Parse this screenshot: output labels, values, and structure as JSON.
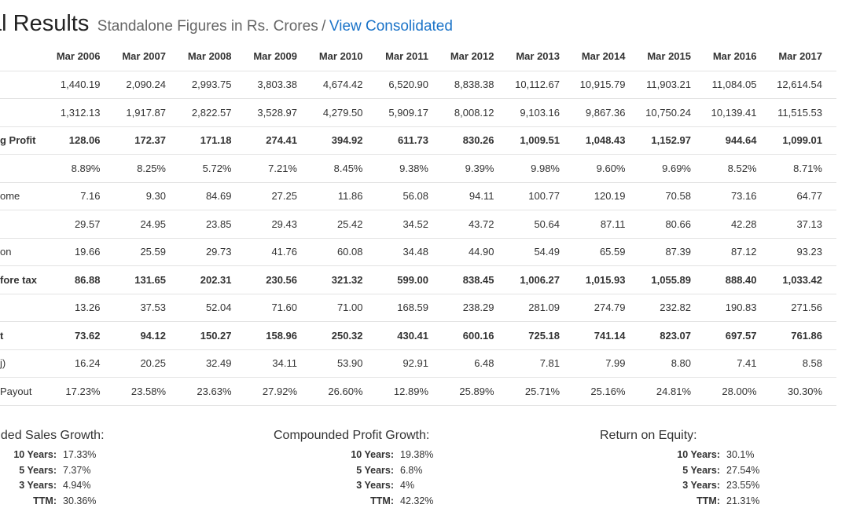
{
  "header": {
    "title": "al Results",
    "subtitle": "Standalone Figures in Rs. Crores",
    "separator": "/",
    "link": "View Consolidated"
  },
  "table": {
    "columns": [
      "Mar 2006",
      "Mar 2007",
      "Mar 2008",
      "Mar 2009",
      "Mar 2010",
      "Mar 2011",
      "Mar 2012",
      "Mar 2013",
      "Mar 2014",
      "Mar 2015",
      "Mar 2016",
      "Mar 2017"
    ],
    "rows": [
      {
        "label": "",
        "bold": false,
        "values": [
          "1,440.19",
          "2,090.24",
          "2,993.75",
          "3,803.38",
          "4,674.42",
          "6,520.90",
          "8,838.38",
          "10,112.67",
          "10,915.79",
          "11,903.21",
          "11,084.05",
          "12,614.54"
        ]
      },
      {
        "label": "",
        "bold": false,
        "values": [
          "1,312.13",
          "1,917.87",
          "2,822.57",
          "3,528.97",
          "4,279.50",
          "5,909.17",
          "8,008.12",
          "9,103.16",
          "9,867.36",
          "10,750.24",
          "10,139.41",
          "11,515.53"
        ]
      },
      {
        "label": "g Profit",
        "bold": true,
        "values": [
          "128.06",
          "172.37",
          "171.18",
          "274.41",
          "394.92",
          "611.73",
          "830.26",
          "1,009.51",
          "1,048.43",
          "1,152.97",
          "944.64",
          "1,099.01"
        ]
      },
      {
        "label": "",
        "bold": false,
        "values": [
          "8.89%",
          "8.25%",
          "5.72%",
          "7.21%",
          "8.45%",
          "9.38%",
          "9.39%",
          "9.98%",
          "9.60%",
          "9.69%",
          "8.52%",
          "8.71%"
        ]
      },
      {
        "label": "ome",
        "bold": false,
        "values": [
          "7.16",
          "9.30",
          "84.69",
          "27.25",
          "11.86",
          "56.08",
          "94.11",
          "100.77",
          "120.19",
          "70.58",
          "73.16",
          "64.77"
        ]
      },
      {
        "label": "",
        "bold": false,
        "values": [
          "29.57",
          "24.95",
          "23.85",
          "29.43",
          "25.42",
          "34.52",
          "43.72",
          "50.64",
          "87.11",
          "80.66",
          "42.28",
          "37.13"
        ]
      },
      {
        "label": "on",
        "bold": false,
        "values": [
          "19.66",
          "25.59",
          "29.73",
          "41.76",
          "60.08",
          "34.48",
          "44.90",
          "54.49",
          "65.59",
          "87.39",
          "87.12",
          "93.23"
        ]
      },
      {
        "label": "fore tax",
        "bold": true,
        "values": [
          "86.88",
          "131.65",
          "202.31",
          "230.56",
          "321.32",
          "599.00",
          "838.45",
          "1,006.27",
          "1,015.93",
          "1,055.89",
          "888.40",
          "1,033.42"
        ]
      },
      {
        "label": "",
        "bold": false,
        "values": [
          "13.26",
          "37.53",
          "52.04",
          "71.60",
          "71.00",
          "168.59",
          "238.29",
          "281.09",
          "274.79",
          "232.82",
          "190.83",
          "271.56"
        ]
      },
      {
        "label": "t",
        "bold": true,
        "values": [
          "73.62",
          "94.12",
          "150.27",
          "158.96",
          "250.32",
          "430.41",
          "600.16",
          "725.18",
          "741.14",
          "823.07",
          "697.57",
          "761.86"
        ]
      },
      {
        "label": "j)",
        "bold": false,
        "values": [
          "16.24",
          "20.25",
          "32.49",
          "34.11",
          "53.90",
          "92.91",
          "6.48",
          "7.81",
          "7.99",
          "8.80",
          "7.41",
          "8.58"
        ]
      },
      {
        "label": "Payout",
        "bold": false,
        "values": [
          "17.23%",
          "23.58%",
          "23.63%",
          "27.92%",
          "26.60%",
          "12.89%",
          "25.89%",
          "25.71%",
          "25.16%",
          "24.81%",
          "28.00%",
          "30.30%"
        ]
      }
    ]
  },
  "growth": [
    {
      "title": "nded Sales Growth:",
      "items": [
        {
          "label": "10 Years:",
          "value": "17.33%"
        },
        {
          "label": "5 Years:",
          "value": "7.37%"
        },
        {
          "label": "3 Years:",
          "value": "4.94%"
        },
        {
          "label": "TTM:",
          "value": "30.36%"
        }
      ]
    },
    {
      "title": "Compounded Profit Growth:",
      "items": [
        {
          "label": "10 Years:",
          "value": "19.38%"
        },
        {
          "label": "5 Years:",
          "value": "6.8%"
        },
        {
          "label": "3 Years:",
          "value": "4%"
        },
        {
          "label": "TTM:",
          "value": "42.32%"
        }
      ]
    },
    {
      "title": "Return on Equity:",
      "items": [
        {
          "label": "10 Years:",
          "value": "30.1%"
        },
        {
          "label": "5 Years:",
          "value": "27.54%"
        },
        {
          "label": "3 Years:",
          "value": "23.55%"
        },
        {
          "label": "TTM:",
          "value": "21.31%"
        }
      ]
    }
  ]
}
